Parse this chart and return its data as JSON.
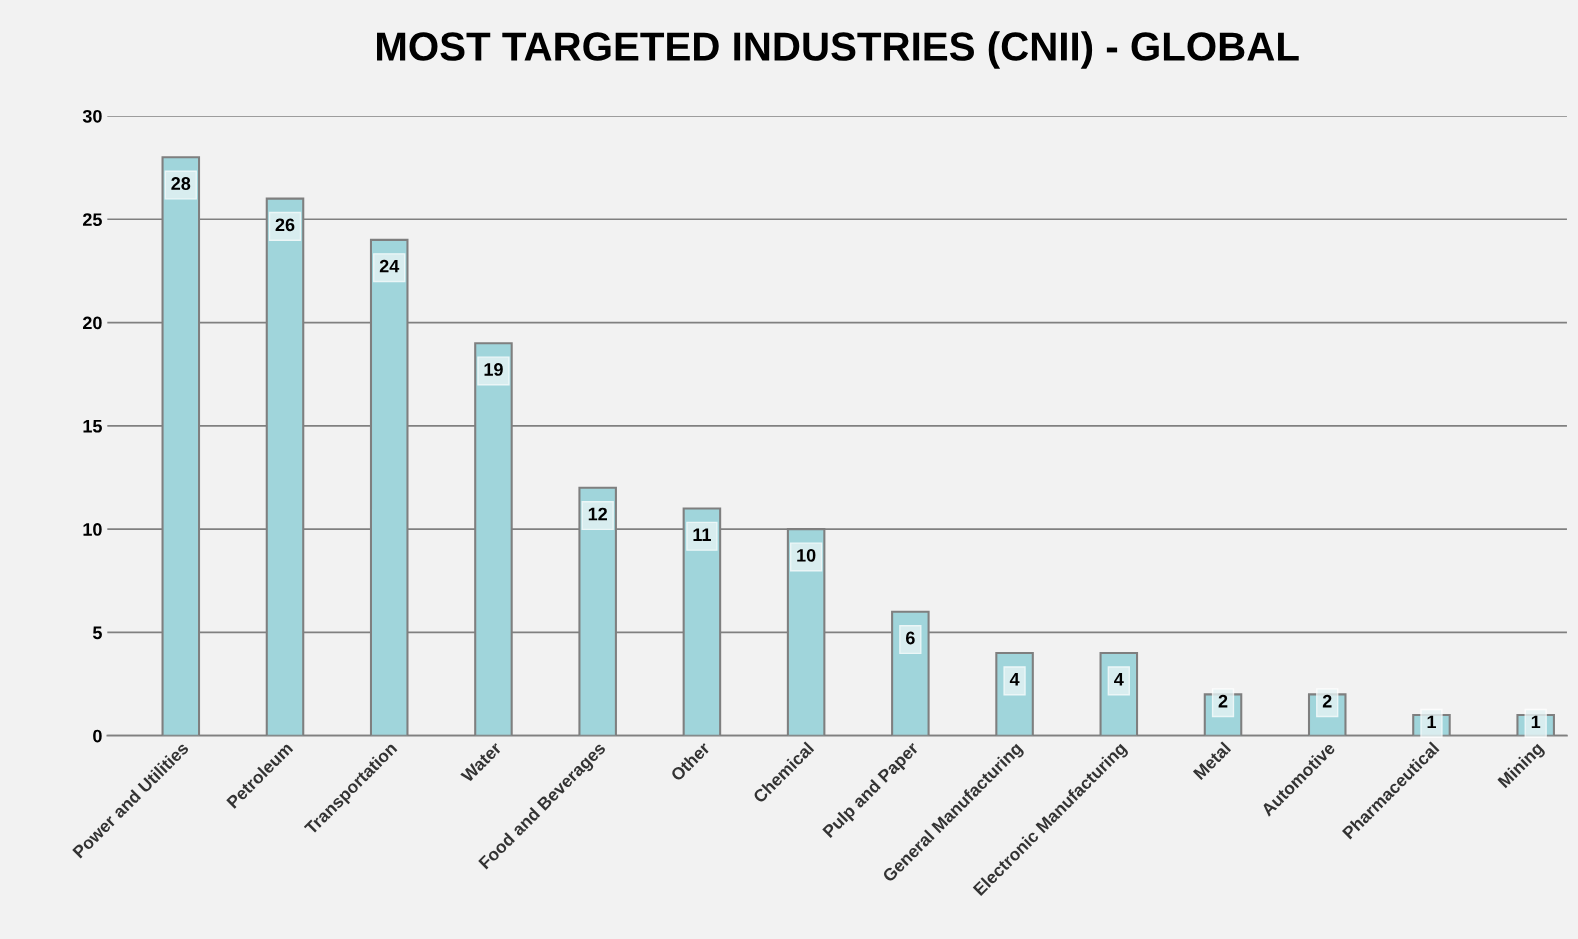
{
  "chart_data": {
    "type": "bar",
    "title": "MOST TARGETED INDUSTRIES (CNII) - GLOBAL",
    "categories": [
      "Power and Utilities",
      "Petroleum",
      "Transportation",
      "Water",
      "Food and Beverages",
      "Other",
      "Chemical",
      "Pulp and Paper",
      "General Manufacturing",
      "Electronic Manufacturing",
      "Metal",
      "Automotive",
      "Pharmaceutical",
      "Mining"
    ],
    "values": [
      28,
      26,
      24,
      19,
      12,
      11,
      10,
      6,
      4,
      4,
      2,
      2,
      1,
      1
    ],
    "color": "#a0d5db",
    "ylim": [
      0,
      30
    ],
    "yticks": [
      0,
      5,
      10,
      15,
      20,
      25,
      30
    ],
    "grid": "y",
    "data_labels": true
  }
}
